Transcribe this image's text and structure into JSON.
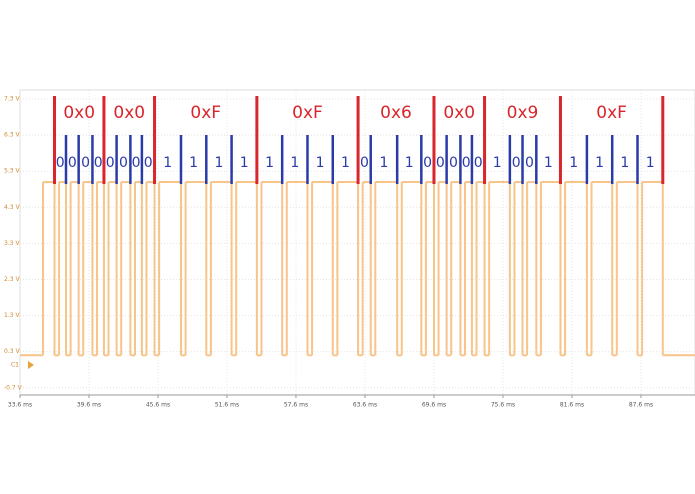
{
  "chart_data": {
    "type": "step",
    "channel_label": "C1",
    "xlim": [
      33.6,
      92.3
    ],
    "ylim": [
      -0.9,
      7.55
    ],
    "xticks": [
      {
        "value": 33.6,
        "label": "33.6 ms"
      },
      {
        "value": 39.6,
        "label": "39.6 ms"
      },
      {
        "value": 45.6,
        "label": "45.6 ms"
      },
      {
        "value": 51.6,
        "label": "51.6 ms"
      },
      {
        "value": 57.6,
        "label": "57.6 ms"
      },
      {
        "value": 63.6,
        "label": "63.6 ms"
      },
      {
        "value": 69.6,
        "label": "69.6 ms"
      },
      {
        "value": 75.6,
        "label": "75.6 ms"
      },
      {
        "value": 81.6,
        "label": "81.6 ms"
      },
      {
        "value": 87.6,
        "label": "87.6 ms"
      }
    ],
    "yticks": [
      {
        "value": 7.3,
        "label": "7.3 V"
      },
      {
        "value": 6.3,
        "label": "6.3 V"
      },
      {
        "value": 5.3,
        "label": "5.3 V"
      },
      {
        "value": 4.3,
        "label": "4.3 V"
      },
      {
        "value": 3.3,
        "label": "3.3 V"
      },
      {
        "value": 2.3,
        "label": "2.3 V"
      },
      {
        "value": 1.3,
        "label": "1.3 V"
      },
      {
        "value": 0.3,
        "label": "0.3 V"
      },
      {
        "value": -0.7,
        "label": "-0.7 V"
      }
    ],
    "grid": true,
    "color": "#f7c48a",
    "x": [
      33.6,
      35.6,
      36.6,
      37.0,
      37.6,
      38.0,
      38.7,
      39.1,
      39.9,
      40.3,
      40.9,
      41.3,
      42.0,
      42.4,
      43.2,
      43.6,
      44.2,
      44.6,
      45.3,
      45.7,
      47.6,
      48.0,
      49.8,
      50.2,
      52.0,
      52.4,
      54.2,
      54.6,
      56.4,
      56.8,
      58.6,
      59.0,
      60.8,
      61.2,
      63.0,
      63.4,
      64.1,
      64.5,
      66.4,
      66.8,
      68.5,
      68.9,
      69.6,
      70.0,
      70.7,
      71.1,
      71.9,
      72.3,
      72.9,
      73.3,
      74.0,
      74.4,
      76.2,
      76.6,
      77.3,
      77.7,
      78.5,
      78.9,
      80.6,
      81.0,
      82.9,
      83.3,
      85.1,
      85.5,
      87.3,
      87.7,
      89.5
    ],
    "values": [
      0.2,
      5.0,
      0.2,
      5.0,
      0.2,
      5.0,
      0.2,
      5.0,
      0.2,
      5.0,
      0.2,
      5.0,
      0.2,
      5.0,
      0.2,
      5.0,
      0.2,
      5.0,
      0.2,
      5.0,
      0.2,
      5.0,
      0.2,
      5.0,
      0.2,
      5.0,
      0.2,
      5.0,
      0.2,
      5.0,
      0.2,
      5.0,
      0.2,
      5.0,
      0.2,
      5.0,
      0.2,
      5.0,
      0.2,
      5.0,
      0.2,
      5.0,
      0.2,
      5.0,
      0.2,
      5.0,
      0.2,
      5.0,
      0.2,
      5.0,
      0.2,
      5.0,
      0.2,
      5.0,
      0.2,
      5.0,
      0.2,
      5.0,
      0.2,
      5.0,
      0.2,
      5.0,
      0.2,
      5.0,
      0.2,
      5.0,
      0.2
    ],
    "bit_boundaries": [
      36.6,
      37.6,
      38.7,
      39.9,
      40.9,
      42.0,
      43.2,
      44.2,
      45.3,
      47.6,
      49.8,
      52.0,
      54.2,
      56.4,
      58.6,
      60.8,
      63.0,
      64.1,
      66.4,
      68.5,
      69.6,
      70.7,
      71.9,
      72.9,
      74.0,
      76.2,
      77.3,
      78.5,
      80.6,
      82.9,
      85.1,
      87.3,
      89.5
    ],
    "nibbles": [
      "0x0",
      "0x0",
      "0xF",
      "0xF",
      "0x6",
      "0x0",
      "0x9",
      "0xF"
    ],
    "bits": [
      "0",
      "0",
      "0",
      "0",
      "0",
      "0",
      "0",
      "0",
      "1",
      "1",
      "1",
      "1",
      "1",
      "1",
      "1",
      "1",
      "0",
      "1",
      "1",
      "0",
      "0",
      "0",
      "0",
      "0",
      "1",
      "0",
      "0",
      "1",
      "1",
      "1",
      "1",
      "1"
    ]
  }
}
